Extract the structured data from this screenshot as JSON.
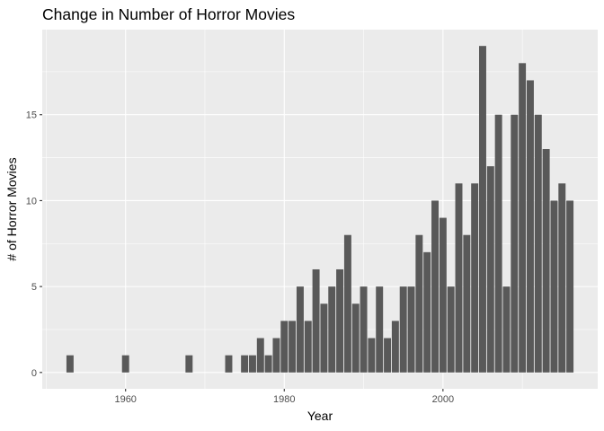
{
  "chart_data": {
    "type": "bar",
    "title": "Change in Number of Horror Movies",
    "xlabel": "Year",
    "ylabel": "# of Horror Movies",
    "xlim": [
      1949.5,
      2019.5
    ],
    "ylim": [
      -0.95,
      19.95
    ],
    "x_ticks": [
      1960,
      1980,
      2000
    ],
    "y_ticks": [
      0,
      5,
      10,
      15
    ],
    "grid": true,
    "legend": "none",
    "bar_color": "#595959",
    "panel_color": "#ebebeb",
    "gridline_color": "#ffffff",
    "x": [
      1953,
      1960,
      1968,
      1973,
      1975,
      1976,
      1977,
      1978,
      1979,
      1980,
      1981,
      1982,
      1983,
      1984,
      1985,
      1986,
      1987,
      1988,
      1989,
      1990,
      1991,
      1992,
      1993,
      1994,
      1995,
      1996,
      1997,
      1998,
      1999,
      2000,
      2001,
      2002,
      2003,
      2004,
      2005,
      2006,
      2007,
      2008,
      2009,
      2010,
      2011,
      2012,
      2013,
      2014,
      2015,
      2016
    ],
    "values": [
      1,
      1,
      1,
      1,
      1,
      1,
      2,
      1,
      2,
      3,
      3,
      5,
      3,
      6,
      4,
      5,
      6,
      8,
      4,
      5,
      2,
      5,
      2,
      3,
      5,
      5,
      8,
      7,
      10,
      9,
      5,
      11,
      8,
      11,
      19,
      12,
      15,
      5,
      15,
      18,
      17,
      15,
      13,
      10,
      11,
      10
    ]
  }
}
